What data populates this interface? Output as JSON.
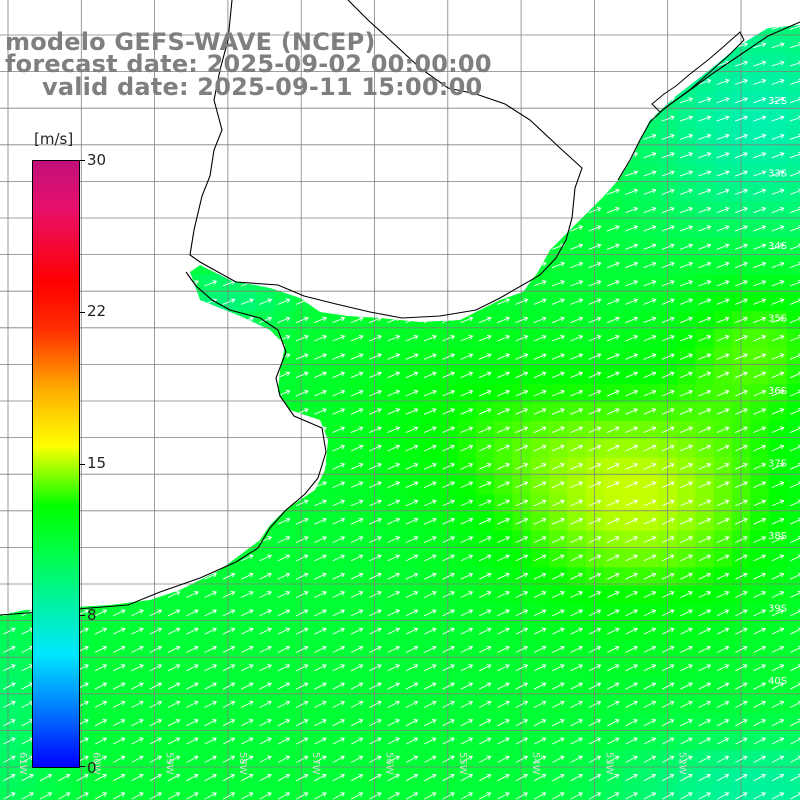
{
  "title": {
    "line1": "modelo GEFS-WAVE (NCEP)",
    "line2": "forecast date: 2025-09-02 00:00:00",
    "line3": "valid date: 2025-09-11 15:00:00"
  },
  "colorbar": {
    "unit": "[m/s]",
    "ticks": [
      "30",
      "22",
      "15",
      "8",
      "0"
    ],
    "tick_values": [
      30,
      22,
      15,
      8,
      0
    ],
    "range": [
      0,
      30
    ],
    "colors": [
      "#0000ff",
      "#0080ff",
      "#00ffff",
      "#00ff40",
      "#00ff00",
      "#ffff00",
      "#ffb000",
      "#ff0000",
      "#c0107a"
    ]
  },
  "map": {
    "variable": "wind speed and direction",
    "lat_labels": [
      "32S",
      "33S",
      "34S",
      "35S",
      "36S",
      "37S",
      "38S",
      "39S",
      "40S"
    ],
    "lon_labels": [
      "61W",
      "60W",
      "59W",
      "58W",
      "57W",
      "56W",
      "55W",
      "54W",
      "53W",
      "52W"
    ],
    "land_color": "#ffffff",
    "coast_color": "#000000",
    "grid_color": "#808080",
    "arrow_color": "#ffffff",
    "wind_direction": "from south-west"
  }
}
